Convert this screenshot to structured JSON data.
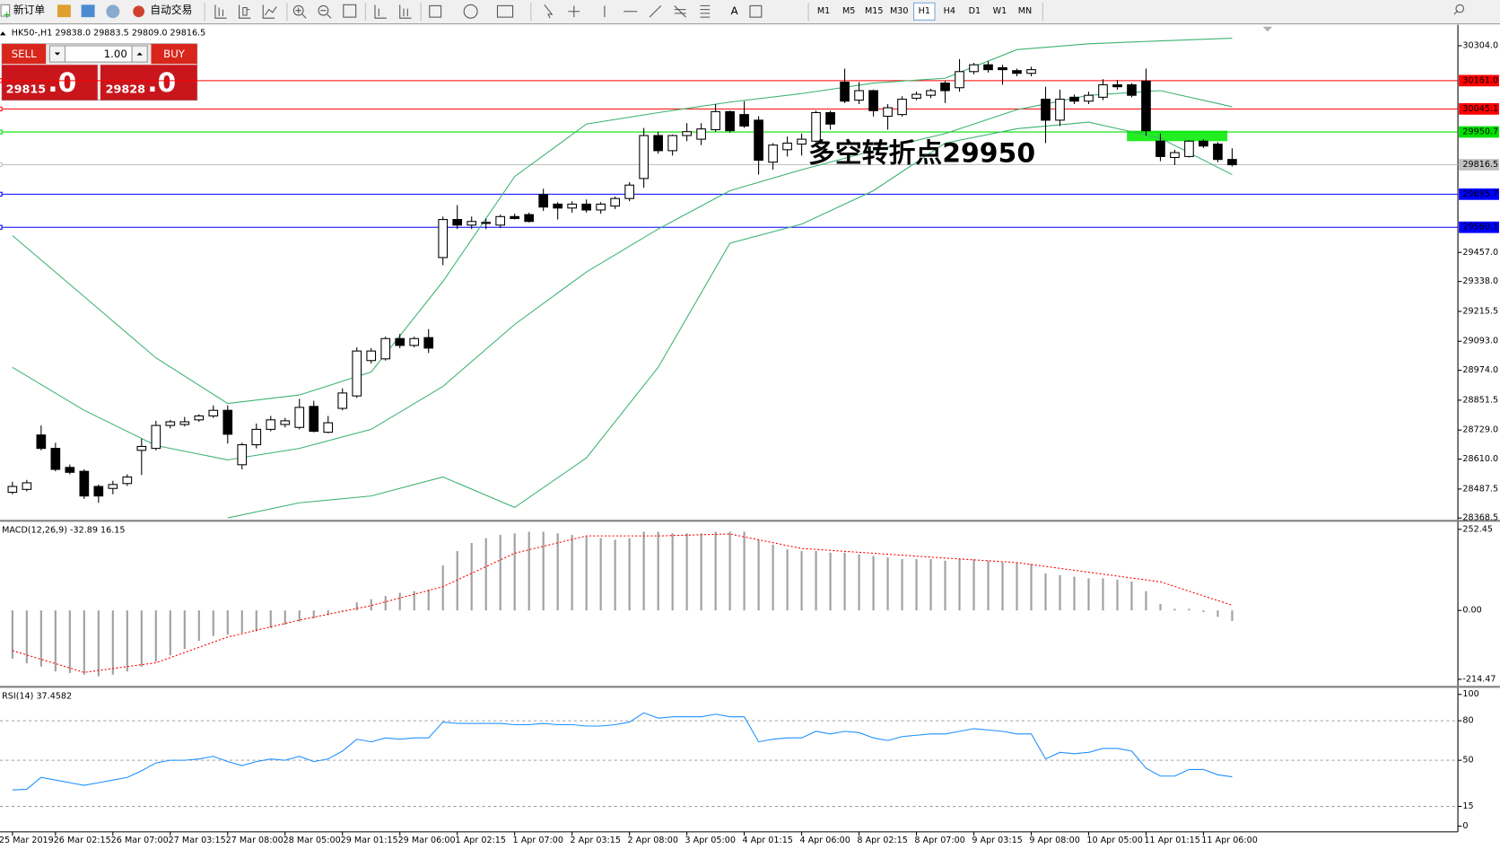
{
  "toolbar": {
    "new_order": "新订单",
    "auto_trading": "自动交易",
    "timeframes": [
      "M1",
      "M5",
      "M15",
      "M30",
      "H1",
      "H4",
      "D1",
      "W1",
      "MN"
    ],
    "active": "H1"
  },
  "trade_panel": {
    "sell": "SELL",
    "buy": "BUY",
    "lots": "1.00",
    "sell_price": {
      "main": "29815",
      "small": ".0"
    },
    "buy_price": {
      "main": "29828",
      "small": ".0"
    }
  },
  "chart_data": [
    {
      "type": "candlestick",
      "title": "HK50-,H1  29838.0 29883.5 29809.0 29816.5",
      "categories": [
        "25 Mar 2019",
        null,
        null,
        "26 Mar 02:15",
        null,
        null,
        null,
        "26 Mar 07:00",
        null,
        null,
        null,
        "27 Mar 03:15",
        null,
        null,
        null,
        "27 Mar 08:00",
        null,
        null,
        null,
        "28 Mar 05:00",
        null,
        null,
        null,
        "29 Mar 01:15",
        null,
        null,
        null,
        "29 Mar 06:00",
        null,
        null,
        null,
        "1 Apr 02:15",
        null,
        null,
        null,
        "1 Apr 07:00",
        null,
        null,
        null,
        "2 Apr 03:15",
        null,
        null,
        null,
        "2 Apr 08:00",
        null,
        null,
        null,
        "3 Apr 05:00",
        null,
        null,
        null,
        "4 Apr 01:15",
        null,
        null,
        null,
        "4 Apr 06:00",
        null,
        null,
        null,
        "8 Apr 02:15",
        null,
        null,
        null,
        "8 Apr 07:00",
        null,
        null,
        null,
        "9 Apr 03:15",
        null,
        null,
        null,
        "9 Apr 08:00",
        null,
        null,
        null,
        "10 Apr 05:00",
        null,
        null,
        null,
        "11 Apr 01:15",
        null,
        null,
        null,
        "11 Apr 06:00",
        null,
        null
      ],
      "open": [
        28474,
        28486,
        28709,
        28654,
        28576,
        28560,
        28498,
        28490,
        28510,
        28646,
        28654,
        28748,
        28752,
        28771,
        28787,
        28810,
        28587,
        28669,
        28732,
        28752,
        28740,
        28826,
        28720,
        28818,
        28869,
        29014,
        29021,
        29104,
        29076,
        29108,
        29436,
        29592,
        29569,
        29580,
        29569,
        29604,
        29612,
        29694,
        29655,
        29639,
        29655,
        29631,
        29647,
        29678,
        29760,
        29936,
        29874,
        29936,
        29921,
        29960,
        30034,
        30022,
        29999,
        29827,
        29878,
        29901,
        29913,
        30030,
        30155,
        30081,
        30120,
        30015,
        30022,
        30089,
        30101,
        30151,
        30132,
        30198,
        30226,
        30214,
        30202,
        30191,
        30085,
        29999,
        30093,
        30077,
        30093,
        30144,
        30144,
        30159,
        29913,
        29846,
        29850,
        29913,
        29901,
        29838
      ],
      "high": [
        28517,
        28525,
        28748,
        28677,
        28588,
        28568,
        28506,
        28521,
        28548,
        28693,
        28767,
        28771,
        28783,
        28794,
        28830,
        28830,
        28677,
        28756,
        28787,
        28779,
        28857,
        28849,
        28787,
        28900,
        29068,
        29065,
        29112,
        29123,
        29112,
        29143,
        29604,
        29651,
        29604,
        29596,
        29612,
        29616,
        29620,
        29718,
        29663,
        29667,
        29674,
        29663,
        29686,
        29745,
        29967,
        29952,
        29940,
        29987,
        29987,
        30065,
        30038,
        30077,
        30015,
        29905,
        29932,
        29944,
        30038,
        30038,
        30210,
        30155,
        30124,
        30065,
        30097,
        30116,
        30128,
        30159,
        30249,
        30234,
        30241,
        30226,
        30210,
        30218,
        30136,
        30124,
        30104,
        30116,
        30167,
        30163,
        30151,
        30210,
        29944,
        29878,
        29917,
        29921,
        29909,
        29883.5
      ],
      "low": [
        28466,
        28478,
        28646,
        28560,
        28548,
        28447,
        28431,
        28466,
        28500,
        28545,
        28646,
        28736,
        28744,
        28763,
        28779,
        28674,
        28568,
        28654,
        28724,
        28740,
        28732,
        28720,
        28716,
        28810,
        28861,
        29002,
        29014,
        29065,
        29068,
        29045,
        29405,
        29553,
        29553,
        29553,
        29557,
        29592,
        29580,
        29627,
        29592,
        29620,
        29620,
        29616,
        29635,
        29667,
        29722,
        29862,
        29854,
        29913,
        29897,
        29952,
        29948,
        29967,
        29776,
        29796,
        29850,
        29854,
        29905,
        29960,
        30069,
        30065,
        30014,
        29960,
        30014,
        30081,
        30089,
        30069,
        30116,
        30187,
        30194,
        30144,
        30179,
        30179,
        29905,
        29975,
        30065,
        30065,
        30081,
        30124,
        30093,
        29936,
        29831,
        29815,
        29846,
        29885,
        29827,
        29809
      ],
      "close": [
        28498,
        28513,
        28654,
        28568,
        28556,
        28459,
        28459,
        28506,
        28537,
        28662,
        28748,
        28763,
        28763,
        28787,
        28810,
        28712,
        28669,
        28732,
        28771,
        28767,
        28822,
        28724,
        28759,
        28881,
        29053,
        29053,
        29104,
        29076,
        29104,
        29065,
        29592,
        29569,
        29584,
        29576,
        29604,
        29596,
        29584,
        29643,
        29639,
        29655,
        29631,
        29655,
        29678,
        29733,
        29936,
        29874,
        29936,
        29952,
        29963,
        30034,
        29956,
        29975,
        29835,
        29897,
        29905,
        29921,
        30030,
        29983,
        30077,
        30120,
        30038,
        30050,
        30085,
        30105,
        30120,
        30120,
        30198,
        30226,
        30206,
        30206,
        30191,
        30206,
        29999,
        30085,
        30077,
        30101,
        30144,
        30136,
        30101,
        29956,
        29850,
        29866,
        29913,
        29893,
        29838,
        29816.5
      ],
      "up_color": "#ffffff",
      "down_color": "#000000",
      "edge_color": "#000000",
      "bands": [
        {
          "color": "#3cb371",
          "x": [
            0,
            5,
            10,
            15,
            20,
            25,
            30,
            35,
            40,
            45,
            50,
            55,
            60,
            65,
            70,
            75,
            80,
            85
          ],
          "values": [
            29526,
            29276,
            29025,
            28838,
            28873,
            28967,
            29338,
            29768,
            29983,
            30030,
            30073,
            30108,
            30151,
            30171,
            30288,
            30312,
            30324,
            30335
          ]
        },
        {
          "color": "#3cb371",
          "x": [
            0,
            5,
            10,
            15,
            20,
            25,
            30,
            35,
            40,
            45,
            50,
            55,
            60,
            65,
            70,
            75,
            80,
            85
          ],
          "values": [
            28986,
            28810,
            28666,
            28607,
            28654,
            28732,
            28908,
            29162,
            29377,
            29553,
            29710,
            29796,
            29874,
            29944,
            30042,
            30101,
            30120,
            30054
          ]
        },
        {
          "color": "#3cb371",
          "x": [
            0,
            5,
            10,
            15,
            20,
            25,
            30,
            35,
            40,
            45,
            50,
            55,
            60,
            65,
            70,
            75,
            80,
            85
          ],
          "values": [
            null,
            null,
            null,
            28369,
            28431,
            28459,
            28537,
            28412,
            28615,
            28986,
            29495,
            29573,
            29710,
            29905,
            29964,
            29991,
            29925,
            29776
          ]
        }
      ],
      "levels": [
        {
          "value": 30161.0,
          "label": "30161.0",
          "color": "#ff0000",
          "label_color": "#ffffff"
        },
        {
          "value": 30045.1,
          "label": "30045.1",
          "color": "#ff0000",
          "label_color": "#ffffff"
        },
        {
          "value": 29950.7,
          "label": "29950.7",
          "color": "#00e000",
          "label_color": "#ffffff"
        },
        {
          "value": 29816.5,
          "label": "29816.5",
          "color": "#c0c0c0",
          "label_color": "#000000"
        },
        {
          "value": 29695.7,
          "label": "29695.7",
          "color": "#0000ff",
          "label_color": "#ffffff"
        },
        {
          "value": 29560.1,
          "label": "29560.1",
          "color": "#0000ff",
          "label_color": "#ffffff"
        }
      ],
      "annotation": {
        "text": "多空转折点29950",
        "color": "#22cc22"
      },
      "ylim": [
        28361,
        30382
      ],
      "yticks": [
        {
          "value": 30304,
          "label": "30304.0"
        },
        {
          "value": 29457,
          "label": "29457.0"
        },
        {
          "value": 29338,
          "label": "29338.0"
        },
        29215.5,
        {
          "value": 29093,
          "label": "29093.0"
        },
        {
          "value": 28974,
          "label": "28974.0"
        },
        28851.5,
        {
          "value": 28729,
          "label": "28729.0"
        },
        {
          "value": 28610,
          "label": "28610.0"
        },
        28487.5,
        28368.5
      ]
    },
    {
      "type": "bar",
      "title": "MACD(12,26,9) -32.89 16.15",
      "color": "#a0a0a0",
      "values": [
        -150,
        -165,
        -175,
        -190,
        -195,
        -200,
        -205,
        -200,
        -190,
        -175,
        -160,
        -140,
        -120,
        -95,
        -80,
        -75,
        -70,
        -65,
        -55,
        -45,
        -35,
        -25,
        -15,
        0,
        25,
        35,
        45,
        55,
        60,
        65,
        140,
        185,
        210,
        225,
        235,
        240,
        245,
        245,
        240,
        235,
        230,
        225,
        220,
        225,
        245,
        245,
        240,
        240,
        240,
        245,
        245,
        245,
        220,
        205,
        190,
        185,
        185,
        180,
        180,
        175,
        170,
        165,
        160,
        160,
        160,
        155,
        160,
        160,
        155,
        150,
        150,
        145,
        115,
        110,
        105,
        100,
        100,
        95,
        90,
        60,
        20,
        5,
        5,
        -5,
        -20,
        -32.89
      ],
      "signal": {
        "color": "#ff0000",
        "x": [
          0,
          5,
          10,
          15,
          20,
          25,
          30,
          35,
          40,
          45,
          50,
          55,
          60,
          65,
          70,
          75,
          80,
          85
        ],
        "values": [
          -125,
          -193,
          -163,
          -83,
          -30,
          15,
          74,
          178,
          232,
          232,
          238,
          193,
          178,
          163,
          149,
          119,
          89,
          16.15
        ]
      },
      "ylim": [
        -232,
        273
      ],
      "yticks": [
        252.45,
        {
          "value": 0,
          "label": "0.00"
        },
        -214.47
      ]
    },
    {
      "type": "line",
      "title": "RSI(14) 37.4582",
      "color": "#1e90ff",
      "values": [
        27.5,
        28,
        37,
        35,
        33,
        31,
        33,
        35,
        37,
        42,
        48,
        50,
        50,
        51,
        53,
        49,
        46,
        49,
        51,
        50,
        53,
        49,
        51,
        57,
        66,
        64,
        67,
        66,
        67,
        67,
        79,
        78,
        78,
        78,
        78,
        77,
        77,
        78,
        77,
        77,
        76,
        76,
        77,
        79,
        86,
        82,
        83,
        83,
        83,
        85,
        83,
        83,
        64,
        66,
        67,
        67,
        72,
        70,
        72,
        71,
        67,
        65,
        68,
        69,
        70,
        70,
        72,
        74,
        73,
        72,
        70,
        70,
        51,
        56,
        55,
        56,
        59,
        59,
        57,
        44,
        38,
        38,
        43,
        43,
        39,
        37.4582
      ],
      "ylim": [
        -4.3,
        104.3
      ],
      "yticks": [
        100,
        80,
        50,
        15,
        0
      ],
      "grid": true
    }
  ]
}
